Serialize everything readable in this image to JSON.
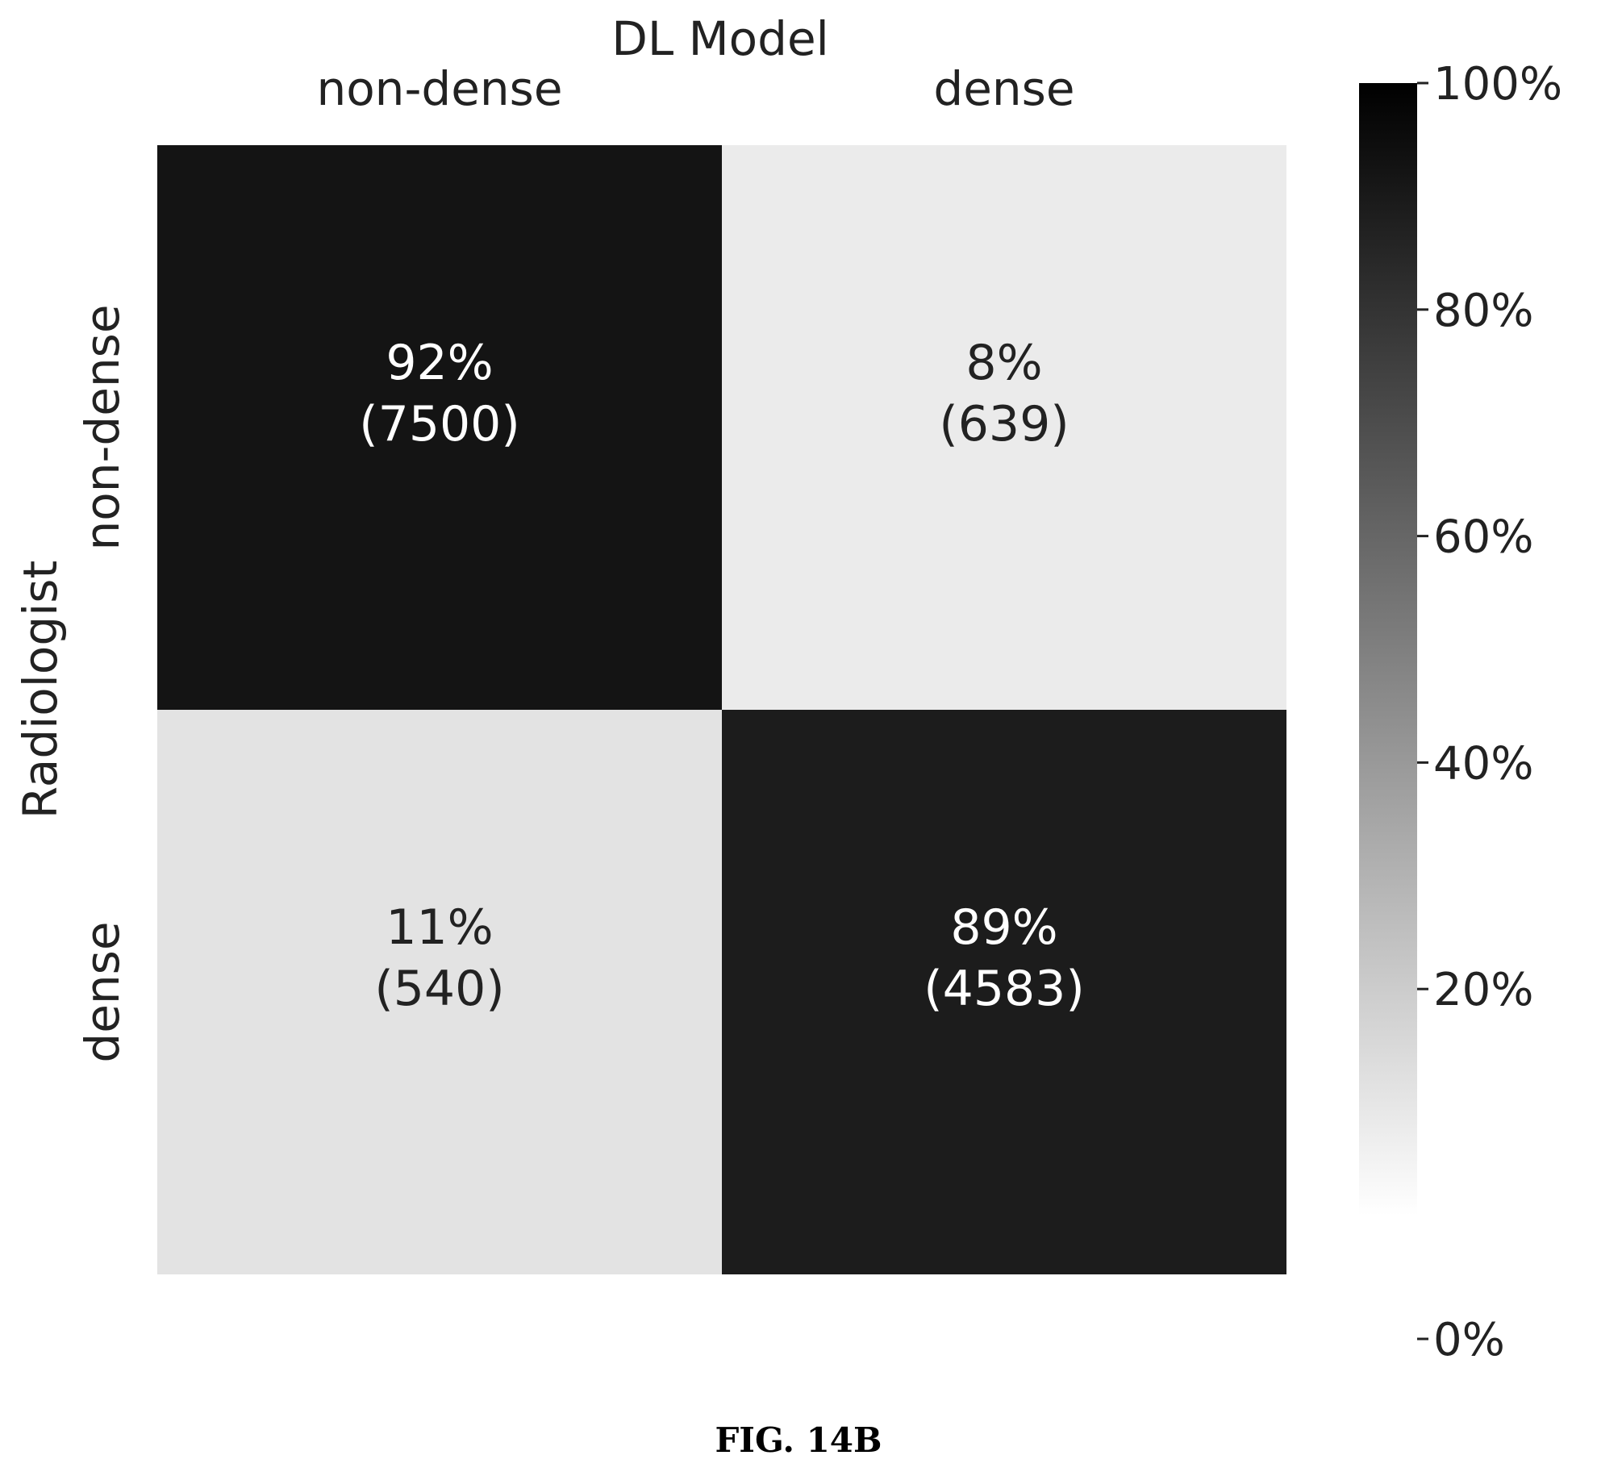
{
  "chart_data": {
    "type": "heatmap",
    "xlabel": "DL Model",
    "ylabel": "Radiologist",
    "x_categories": [
      "non-dense",
      "dense"
    ],
    "y_categories": [
      "non-dense",
      "dense"
    ],
    "cells": [
      {
        "row": 0,
        "col": 0,
        "percent": 92,
        "count": 7500,
        "label": "92%",
        "count_label": "(7500)"
      },
      {
        "row": 0,
        "col": 1,
        "percent": 8,
        "count": 639,
        "label": "8%",
        "count_label": "(639)"
      },
      {
        "row": 1,
        "col": 0,
        "percent": 11,
        "count": 540,
        "label": "11%",
        "count_label": "(540)"
      },
      {
        "row": 1,
        "col": 1,
        "percent": 89,
        "count": 4583,
        "label": "89%",
        "count_label": "(4583)"
      }
    ],
    "colorbar": {
      "range": [
        0,
        100
      ],
      "ticks": [
        {
          "value": 100,
          "label": "100%"
        },
        {
          "value": 80,
          "label": "80%"
        },
        {
          "value": 60,
          "label": "60%"
        },
        {
          "value": 40,
          "label": "40%"
        },
        {
          "value": 20,
          "label": "20%"
        },
        {
          "value": 0,
          "label": "0%"
        }
      ],
      "colormap": [
        "#ffffff",
        "#000000"
      ]
    }
  },
  "caption": "FIG. 14B"
}
